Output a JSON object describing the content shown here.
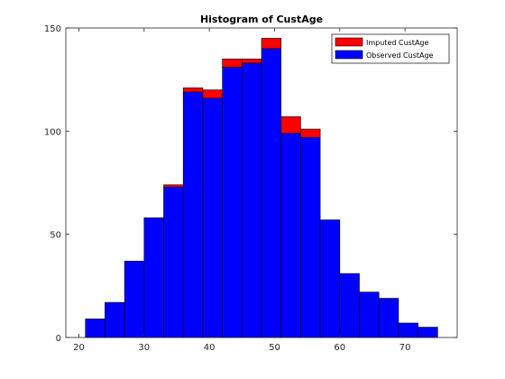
{
  "chart_data": {
    "type": "bar",
    "stacked": true,
    "title": "Histogram of CustAge",
    "xlabel": "",
    "ylabel": "",
    "xlim": [
      18,
      78
    ],
    "ylim": [
      0,
      150
    ],
    "xticks": [
      20,
      30,
      40,
      50,
      60,
      70
    ],
    "yticks": [
      0,
      50,
      100,
      150
    ],
    "grid": false,
    "legend_position": "top-right",
    "bin_edges": [
      21,
      24,
      27,
      30,
      33,
      36,
      39,
      42,
      45,
      48,
      51,
      54,
      57,
      60,
      63,
      66,
      69,
      72,
      75
    ],
    "series": [
      {
        "name": "Observed CustAge",
        "color": "#0000ff",
        "values": [
          9,
          17,
          37,
          58,
          73,
          119,
          116,
          131,
          133,
          140,
          99,
          97,
          57,
          31,
          22,
          19,
          7,
          5
        ]
      },
      {
        "name": "Imputed CustAge",
        "color": "#ff0000",
        "values": [
          0,
          0,
          0,
          0,
          1,
          2,
          4,
          4,
          2,
          5,
          8,
          4,
          0,
          0,
          0,
          0,
          0,
          0
        ]
      }
    ]
  }
}
